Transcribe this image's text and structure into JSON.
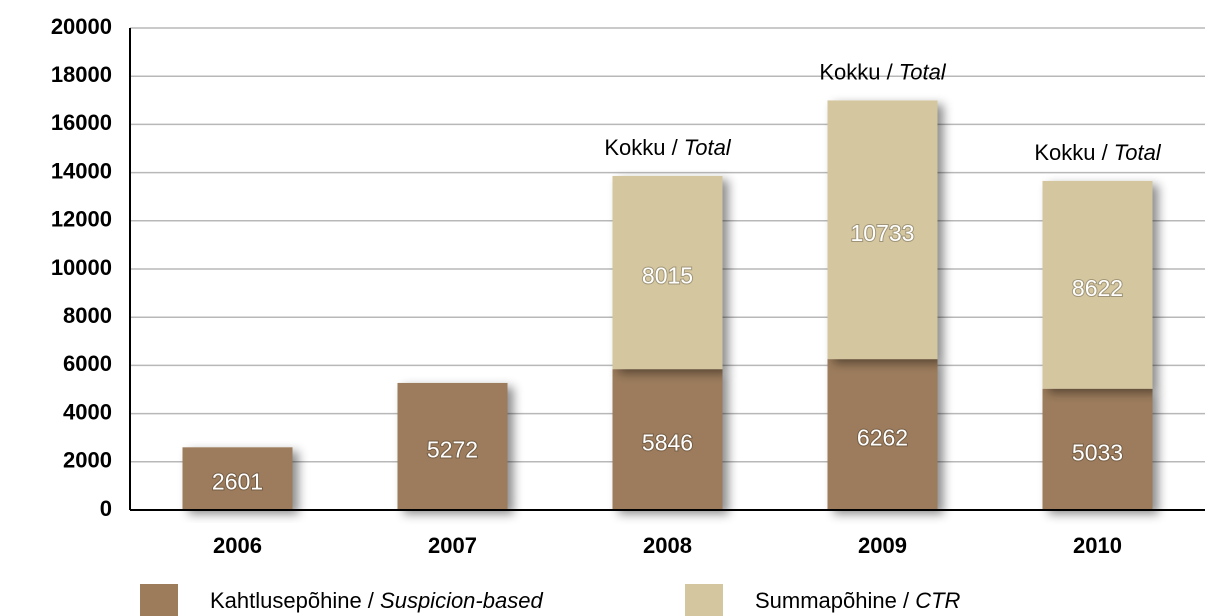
{
  "chart_data": {
    "type": "stacked_bar",
    "categories": [
      "2006",
      "2007",
      "2008",
      "2009",
      "2010"
    ],
    "series": [
      {
        "name": "Kahtlusepõhine / Suspicion-based",
        "color": "#9c7c5b",
        "values": [
          2601,
          5272,
          5846,
          6262,
          5033
        ]
      },
      {
        "name": "Summapõhine / CTR",
        "color": "#d4c69f",
        "values": [
          null,
          null,
          8015,
          10733,
          8622
        ]
      }
    ],
    "total_labels": [
      null,
      null,
      "Kokku / Total",
      "Kokku / Total",
      "Kokku / Total"
    ],
    "ylim": [
      0,
      20000
    ],
    "yticks": [
      0,
      2000,
      4000,
      6000,
      8000,
      10000,
      12000,
      14000,
      16000,
      18000,
      20000
    ],
    "grid": true,
    "legend": "bottom"
  }
}
